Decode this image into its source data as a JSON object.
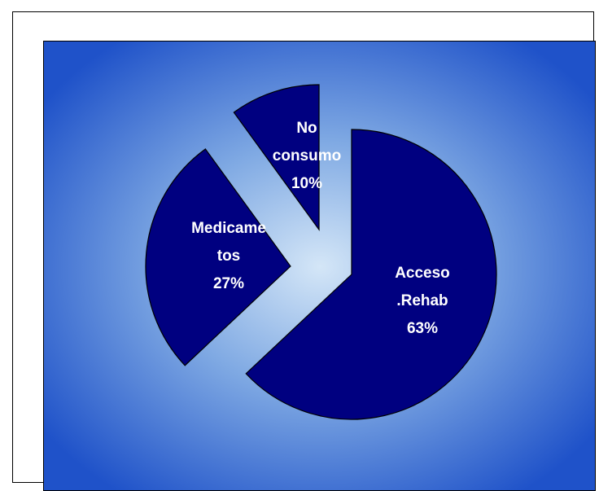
{
  "chart_data": {
    "type": "pie",
    "title": "",
    "slices": [
      {
        "label_lines": [
          "Acceso",
          ".Rehab"
        ],
        "value": 63,
        "value_text": "63%"
      },
      {
        "label_lines": [
          "Medicame",
          "tos"
        ],
        "value": 27,
        "value_text": "27%"
      },
      {
        "label_lines": [
          "No",
          "consumo"
        ],
        "value": 10,
        "value_text": "10%"
      }
    ],
    "exploded": true,
    "legend": "none"
  },
  "colors": {
    "slice_fill": "#000080",
    "slice_stroke": "#000000",
    "background_center": "#d4e6f7",
    "background_edge": "#1f52c9",
    "label_text": "#ffffff"
  }
}
